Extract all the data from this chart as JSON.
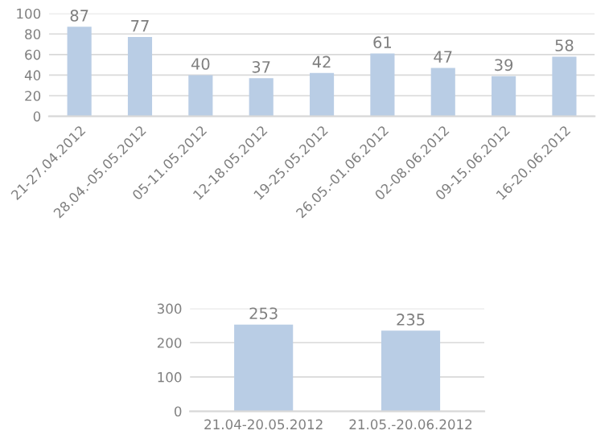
{
  "chart_data": [
    {
      "type": "bar",
      "categories": [
        "21-27.04.2012",
        "28.04.-05.05.2012",
        "05-11.05.2012",
        "12-18.05.2012",
        "19-25.05.2012",
        "26.05.-01.06.2012",
        "02-08.06.2012",
        "09-15.06.2012",
        "16-20.06.2012"
      ],
      "values": [
        87,
        77,
        40,
        37,
        42,
        61,
        47,
        39,
        58
      ],
      "color": "#b9cde5",
      "ylim": [
        0,
        100
      ],
      "yticks": [
        0,
        20,
        40,
        60,
        80,
        100
      ],
      "grid": "y",
      "data_labels": true
    },
    {
      "type": "bar",
      "categories": [
        "21.04-20.05.2012",
        "21.05.-20.06.2012"
      ],
      "values": [
        253,
        235
      ],
      "color": "#b9cde5",
      "ylim": [
        0,
        300
      ],
      "yticks": [
        0,
        100,
        200,
        300
      ],
      "grid": "y",
      "data_labels": true
    }
  ]
}
